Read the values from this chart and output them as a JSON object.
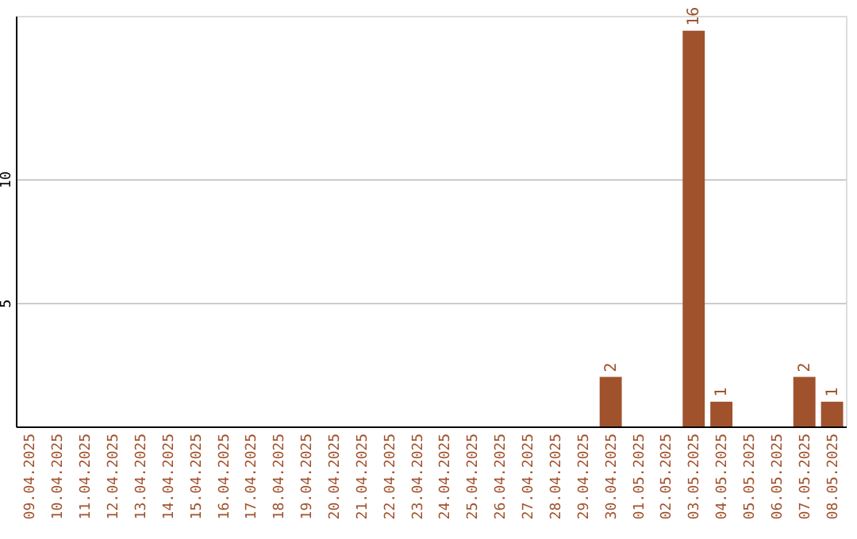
{
  "chart_data": {
    "type": "bar",
    "categories": [
      "09.04.2025",
      "10.04.2025",
      "11.04.2025",
      "12.04.2025",
      "13.04.2025",
      "14.04.2025",
      "15.04.2025",
      "16.04.2025",
      "17.04.2025",
      "18.04.2025",
      "19.04.2025",
      "20.04.2025",
      "21.04.2025",
      "22.04.2025",
      "23.04.2025",
      "24.04.2025",
      "25.04.2025",
      "26.04.2025",
      "27.04.2025",
      "28.04.2025",
      "29.04.2025",
      "30.04.2025",
      "01.05.2025",
      "02.05.2025",
      "03.05.2025",
      "04.05.2025",
      "05.05.2025",
      "06.05.2025",
      "07.05.2025",
      "08.05.2025"
    ],
    "values": [
      0,
      0,
      0,
      0,
      0,
      0,
      0,
      0,
      0,
      0,
      0,
      0,
      0,
      0,
      0,
      0,
      0,
      0,
      0,
      0,
      0,
      2,
      0,
      0,
      16,
      1,
      0,
      0,
      2,
      1
    ],
    "value_labels": [
      null,
      null,
      null,
      null,
      null,
      null,
      null,
      null,
      null,
      null,
      null,
      null,
      null,
      null,
      null,
      null,
      null,
      null,
      null,
      null,
      null,
      "2",
      null,
      null,
      "16",
      "1",
      null,
      null,
      "2",
      "1"
    ],
    "color": "#a0522d",
    "ylim": [
      0,
      16.6
    ],
    "yticks": [
      5,
      10
    ],
    "grid": "y"
  }
}
